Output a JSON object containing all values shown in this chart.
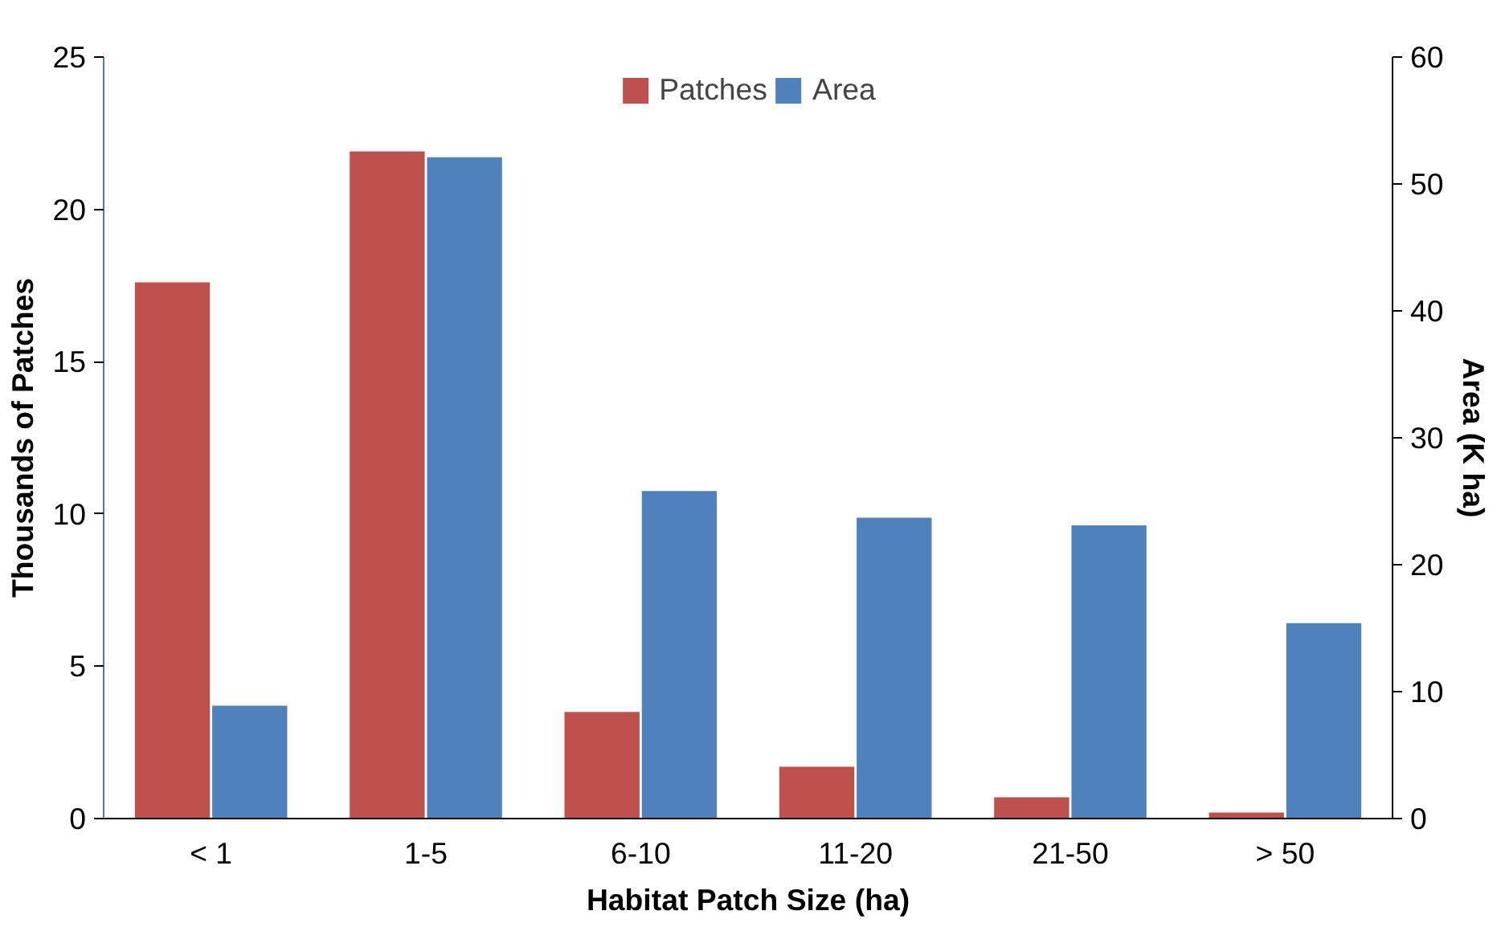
{
  "chart_data": {
    "type": "bar",
    "xlabel": "Habitat Patch Size (ha)",
    "ylabel": "Thousands of Patches",
    "y2label": "Area (K ha)",
    "categories": [
      "< 1",
      "1-5",
      "6-10",
      "11-20",
      "21-50",
      "> 50"
    ],
    "series": [
      {
        "name": "Patches",
        "color": "#c0504d",
        "values": [
          17.6,
          21.9,
          3.5,
          1.7,
          0.7,
          0.2
        ]
      },
      {
        "name": "Area",
        "color": "#4f81bd",
        "axis": "y2",
        "values": [
          8.9,
          52.1,
          25.8,
          23.7,
          23.1,
          15.4
        ]
      }
    ],
    "ylim": [
      0,
      25
    ],
    "yticks": [
      0,
      5,
      10,
      15,
      20,
      25
    ],
    "y2lim": [
      0,
      60
    ],
    "y2ticks": [
      0,
      10,
      20,
      30,
      40,
      50,
      60
    ],
    "grid": false,
    "legend": "top"
  }
}
